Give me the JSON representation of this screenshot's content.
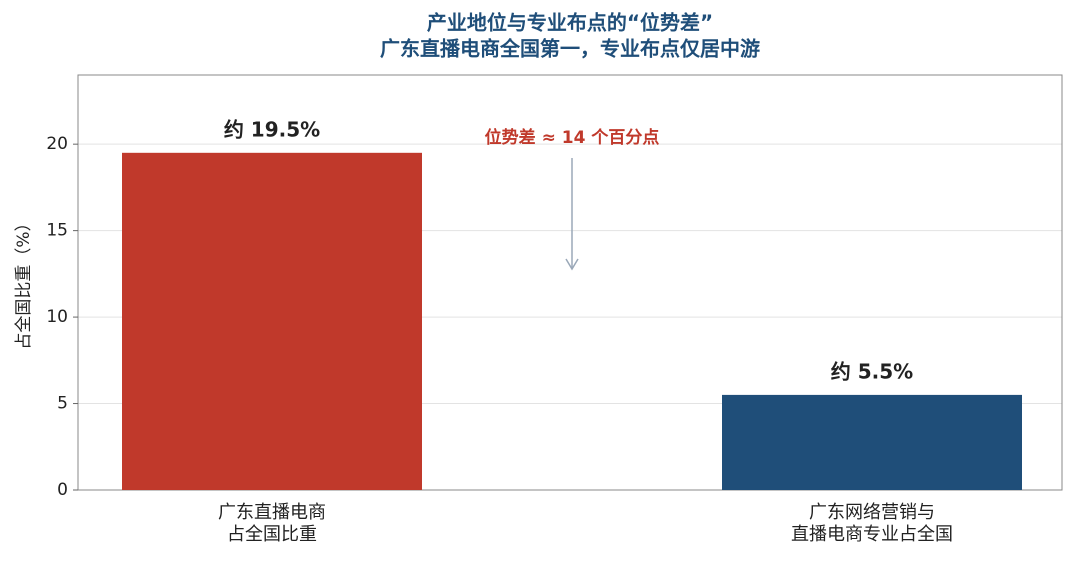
{
  "chart_data": {
    "type": "bar",
    "title": "产业地位与专业布点的“位势差”",
    "subtitle": "广东直播电商全国第一，专业布点仅居中游",
    "ylabel": "占全国比重（%）",
    "categories": [
      "广东直播电商\n占全国比重",
      "广东网络营销与\n直播电商专业占全国"
    ],
    "values": [
      19.5,
      5.5
    ],
    "value_labels": [
      "约 19.5%",
      "约 5.5%"
    ],
    "colors": [
      "#c0392b",
      "#1f4e79"
    ],
    "annotation": "位势差 ≈ 14 个百分点",
    "ylim": [
      0,
      24
    ],
    "yticks": [
      0,
      5,
      10,
      15,
      20
    ],
    "grid": true
  }
}
